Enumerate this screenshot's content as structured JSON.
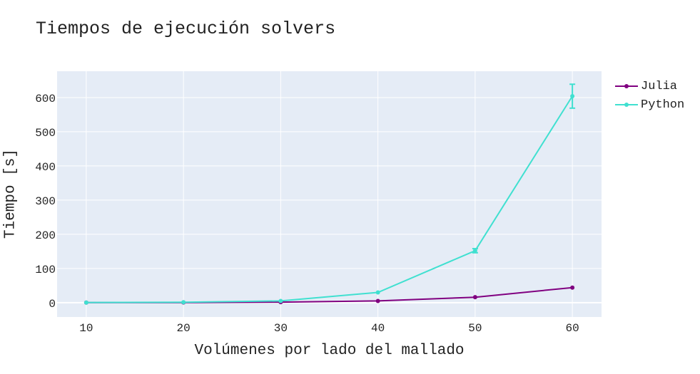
{
  "chart_data": {
    "type": "line",
    "title": "Tiempos de ejecución solvers",
    "xlabel": "Volúmenes por lado del mallado",
    "ylabel": "Tiempo [s]",
    "x": [
      10,
      20,
      30,
      40,
      50,
      60
    ],
    "xticks": [
      "10",
      "20",
      "30",
      "40",
      "50",
      "60"
    ],
    "yticks": [
      "0",
      "100",
      "200",
      "300",
      "400",
      "500",
      "600"
    ],
    "xlim": [
      7,
      63
    ],
    "ylim": [
      -42,
      677
    ],
    "grid": true,
    "legend_position": "top-right",
    "series": [
      {
        "name": "Julia",
        "color": "#800080",
        "values": [
          0.1,
          0.4,
          1.5,
          5,
          16,
          44
        ]
      },
      {
        "name": "Python",
        "color": "#40E0D0",
        "values": [
          0.3,
          1.2,
          5,
          30,
          152,
          604
        ],
        "error": [
          0,
          0,
          0,
          0,
          6,
          35
        ]
      }
    ]
  },
  "colors": {
    "plot_bg": "#E5ECF6",
    "grid": "#ffffff"
  }
}
